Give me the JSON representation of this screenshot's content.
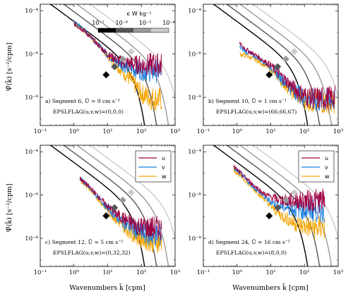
{
  "figure": {
    "panels": [
      {
        "id": "a",
        "annotation_line1": "a) Segment 6, Ū ≈ 9 cm s⁻¹",
        "annotation_line2": "EPSLFLAG(u,v,w)=(0,0,0)"
      },
      {
        "id": "b",
        "annotation_line1": "b) Segment 10, Ū ≈ 1 cm s⁻¹",
        "annotation_line2": "EPSLFLAG(u,v,w)=(66,66,67)"
      },
      {
        "id": "c",
        "annotation_line1": "c) Segment 12, Ū ≈ 5 cm s⁻¹",
        "annotation_line2": "EPSLFLAG(u,v,w)=(0,32,32)"
      },
      {
        "id": "d",
        "annotation_line1": "d) Segment 24, Ū ≈ 16 cm s⁻¹",
        "annotation_line2": "EPSLFLAG(u,v,w)=(8,0,0)"
      }
    ],
    "ylabel": "Ψ̂(k̃) [s⁻²/cpm]",
    "xlabel": "Wavenumbers k̃ [cpm]",
    "colorbar": {
      "title": "ϵ W kg⁻¹",
      "tick_labels": [
        "10⁻⁷",
        "10⁻⁶",
        "10⁻⁵",
        "10⁻⁴"
      ],
      "colors": [
        "#000000",
        "#555555",
        "#999999",
        "#cccccc"
      ]
    },
    "x_tick_labels": [
      "10⁻¹",
      "10⁰",
      "10¹",
      "10²",
      "10³"
    ],
    "y_tick_labels": [
      "10⁻⁴",
      "10⁻⁶",
      "10⁻⁸"
    ],
    "legend": {
      "u": "u",
      "v": "v",
      "w": "w"
    },
    "series_colors": {
      "u": "#9e0142",
      "v": "#1a7fe0",
      "w": "#f4a300"
    }
  },
  "chart_data": [
    {
      "type": "line",
      "panel": "a",
      "xscale": "log",
      "yscale": "log",
      "xlim": [
        0.1,
        1000
      ],
      "ylim": [
        5e-10,
        0.0002
      ],
      "grid": false,
      "legend": "none",
      "model_spectra": {
        "epsilon": [
          1e-07,
          1e-06,
          1e-05,
          0.0001
        ]
      },
      "markers": {
        "x": [
          9,
          16,
          28,
          50
        ],
        "y": [
          1.1e-07,
          2.6e-07,
          5.8e-07,
          1.3e-06
        ]
      },
      "series": [
        {
          "name": "u",
          "x": [
            1,
            2,
            4,
            10,
            20,
            50,
            100,
            200,
            400
          ],
          "y": [
            2.5e-05,
            1.2e-05,
            4e-06,
            1e-06,
            5e-07,
            3.5e-07,
            3.2e-07,
            3.2e-07,
            3.2e-07
          ]
        },
        {
          "name": "v",
          "x": [
            1,
            2,
            4,
            10,
            20,
            50,
            100,
            200,
            400
          ],
          "y": [
            3e-05,
            1.3e-05,
            4.5e-06,
            9e-07,
            4e-07,
            2.2e-07,
            1.8e-07,
            1.7e-07,
            1.7e-07
          ]
        },
        {
          "name": "w",
          "x": [
            1,
            2,
            4,
            10,
            20,
            50,
            100,
            200,
            400
          ],
          "y": [
            2.8e-05,
            1.2e-05,
            4.2e-06,
            8e-07,
            2.5e-07,
            6e-08,
            1.5e-08,
            9e-09,
            8e-09
          ]
        }
      ]
    },
    {
      "type": "line",
      "panel": "b",
      "xscale": "log",
      "yscale": "log",
      "xlim": [
        0.1,
        1000
      ],
      "ylim": [
        5e-10,
        0.0002
      ],
      "grid": false,
      "legend": "none",
      "model_spectra": {
        "epsilon": [
          1e-07,
          1e-06,
          1e-05,
          0.0001
        ]
      },
      "markers": {
        "x": [
          9,
          16,
          28,
          50
        ],
        "y": [
          1.1e-07,
          2.6e-07,
          5.8e-07,
          1.3e-06
        ]
      },
      "series": [
        {
          "name": "u",
          "x": [
            1.2,
            2,
            4,
            10,
            20,
            50,
            100,
            200,
            400,
            800
          ],
          "y": [
            3e-06,
            1.5e-06,
            8e-07,
            3e-07,
            1e-07,
            2.5e-08,
            1.2e-08,
            9e-09,
            9e-09,
            1e-08
          ]
        },
        {
          "name": "v",
          "x": [
            1.2,
            2,
            4,
            10,
            20,
            50,
            100,
            200,
            400,
            800
          ],
          "y": [
            2e-06,
            1.2e-06,
            7e-07,
            2.5e-07,
            8e-08,
            2e-08,
            1e-08,
            7e-09,
            7e-09,
            8e-09
          ]
        },
        {
          "name": "w",
          "x": [
            1.2,
            2,
            4,
            10,
            20,
            50,
            100,
            200,
            400,
            800
          ],
          "y": [
            1e-06,
            8e-07,
            5e-07,
            2e-07,
            6e-08,
            1.5e-08,
            8e-09,
            6e-09,
            6e-09,
            6e-09
          ]
        }
      ]
    },
    {
      "type": "line",
      "panel": "c",
      "xscale": "log",
      "yscale": "log",
      "xlim": [
        0.1,
        1000
      ],
      "ylim": [
        5e-10,
        0.0002
      ],
      "grid": false,
      "legend": "top-right",
      "model_spectra": {
        "epsilon": [
          1e-07,
          1e-06,
          1e-05,
          0.0001
        ]
      },
      "markers": {
        "x": [
          9,
          16,
          28,
          50
        ],
        "y": [
          1.1e-07,
          2.6e-07,
          5.8e-07,
          1.3e-06
        ]
      },
      "series": [
        {
          "name": "u",
          "x": [
            1.5,
            3,
            6,
            10,
            20,
            50,
            100,
            200,
            400
          ],
          "y": [
            6e-06,
            2.2e-06,
            7e-07,
            3e-07,
            1.2e-07,
            5e-08,
            3.5e-08,
            3e-08,
            3e-08
          ]
        },
        {
          "name": "v",
          "x": [
            1.5,
            3,
            6,
            10,
            20,
            50,
            100,
            200,
            400
          ],
          "y": [
            6e-06,
            2e-06,
            6e-07,
            2.5e-07,
            9e-08,
            3.2e-08,
            1.8e-08,
            1.4e-08,
            1.4e-08
          ]
        },
        {
          "name": "w",
          "x": [
            1.5,
            3,
            6,
            10,
            20,
            50,
            100,
            200,
            400
          ],
          "y": [
            5.5e-06,
            1.8e-06,
            5e-07,
            2e-07,
            6e-08,
            1.8e-08,
            1e-08,
            8e-09,
            7e-09
          ]
        }
      ]
    },
    {
      "type": "line",
      "panel": "d",
      "xscale": "log",
      "yscale": "log",
      "xlim": [
        0.1,
        1000
      ],
      "ylim": [
        5e-10,
        0.0002
      ],
      "grid": false,
      "legend": "top-right",
      "model_spectra": {
        "epsilon": [
          1e-07,
          1e-06,
          1e-05,
          0.0001
        ]
      },
      "markers": {
        "x": [
          9,
          16,
          28,
          50
        ],
        "y": [
          1.1e-07,
          2.6e-07,
          5.8e-07,
          1.3e-06
        ]
      },
      "series": [
        {
          "name": "u",
          "x": [
            0.8,
            1.5,
            3,
            6,
            10,
            20,
            50,
            100,
            200,
            400
          ],
          "y": [
            2e-05,
            8e-06,
            3e-06,
            1.2e-06,
            8e-07,
            6e-07,
            5.5e-07,
            5.5e-07,
            5.5e-07,
            5.5e-07
          ]
        },
        {
          "name": "v",
          "x": [
            0.8,
            1.5,
            3,
            6,
            10,
            20,
            50,
            100,
            200,
            400
          ],
          "y": [
            1.8e-05,
            7e-06,
            2.5e-06,
            9e-07,
            5e-07,
            3e-07,
            2.2e-07,
            2e-07,
            2e-07,
            2e-07
          ]
        },
        {
          "name": "w",
          "x": [
            0.8,
            1.5,
            3,
            6,
            10,
            20,
            50,
            100,
            200,
            400
          ],
          "y": [
            1.5e-05,
            6e-06,
            2e-06,
            7e-07,
            3e-07,
            1.2e-07,
            5e-08,
            3.5e-08,
            3e-08,
            3e-08
          ]
        }
      ]
    }
  ]
}
